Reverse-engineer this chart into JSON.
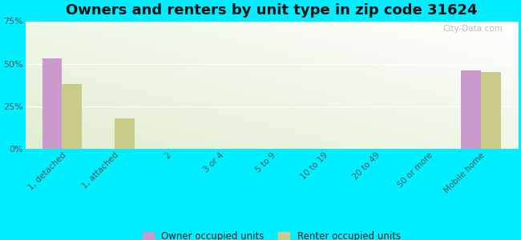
{
  "title": "Owners and renters by unit type in zip code 31624",
  "categories": [
    "1, detached",
    "1, attached",
    "2",
    "3 or 4",
    "5 to 9",
    "10 to 19",
    "20 to 49",
    "50 or more",
    "Mobile home"
  ],
  "owner_values": [
    53,
    0,
    0,
    0,
    0,
    0,
    0,
    0,
    46
  ],
  "renter_values": [
    38,
    18,
    0,
    0,
    0,
    0,
    0,
    0,
    45
  ],
  "owner_color": "#cc99cc",
  "renter_color": "#c8cc88",
  "background_outer": "#00eeff",
  "background_plot_topleft": "#c8ddb0",
  "background_plot_white": "#f8fdf4",
  "ylim": [
    0,
    75
  ],
  "yticks": [
    0,
    25,
    50,
    75
  ],
  "ytick_labels": [
    "0%",
    "25%",
    "50%",
    "75%"
  ],
  "title_fontsize": 13,
  "bar_width": 0.38,
  "watermark": "City-Data.com"
}
